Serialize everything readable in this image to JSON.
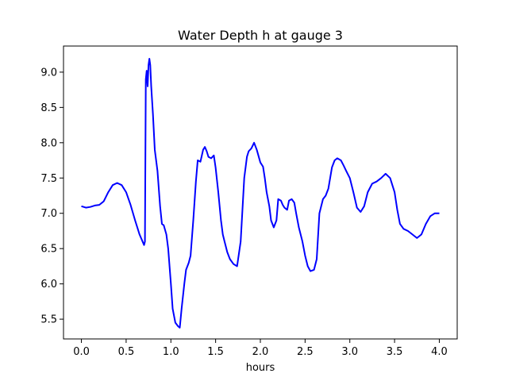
{
  "chart_data": {
    "type": "line",
    "title": "Water Depth h at gauge 3",
    "xlabel": "hours",
    "ylabel": "",
    "xlim": [
      -0.2,
      4.2
    ],
    "ylim": [
      5.22,
      9.37
    ],
    "xticks": [
      0.0,
      0.5,
      1.0,
      1.5,
      2.0,
      2.5,
      3.0,
      3.5,
      4.0
    ],
    "xtick_labels": [
      "0.0",
      "0.5",
      "1.0",
      "1.5",
      "2.0",
      "2.5",
      "3.0",
      "3.5",
      "4.0"
    ],
    "yticks": [
      5.5,
      6.0,
      6.5,
      7.0,
      7.5,
      8.0,
      8.5,
      9.0
    ],
    "ytick_labels": [
      "5.5",
      "6.0",
      "6.5",
      "7.0",
      "7.5",
      "8.0",
      "8.5",
      "9.0"
    ],
    "grid": false,
    "series": [
      {
        "color": "#0000ff",
        "x": [
          0.0,
          0.05,
          0.1,
          0.15,
          0.2,
          0.25,
          0.3,
          0.35,
          0.4,
          0.45,
          0.5,
          0.55,
          0.6,
          0.65,
          0.7,
          0.71,
          0.72,
          0.73,
          0.74,
          0.75,
          0.76,
          0.77,
          0.78,
          0.8,
          0.82,
          0.85,
          0.88,
          0.9,
          0.92,
          0.95,
          0.97,
          1.0,
          1.02,
          1.05,
          1.08,
          1.1,
          1.12,
          1.15,
          1.17,
          1.2,
          1.22,
          1.25,
          1.28,
          1.3,
          1.33,
          1.36,
          1.38,
          1.4,
          1.42,
          1.45,
          1.48,
          1.5,
          1.53,
          1.56,
          1.58,
          1.6,
          1.63,
          1.66,
          1.7,
          1.74,
          1.78,
          1.82,
          1.85,
          1.87,
          1.9,
          1.93,
          1.96,
          2.0,
          2.03,
          2.05,
          2.07,
          2.1,
          2.12,
          2.15,
          2.18,
          2.2,
          2.23,
          2.25,
          2.27,
          2.3,
          2.32,
          2.35,
          2.38,
          2.4,
          2.43,
          2.47,
          2.5,
          2.53,
          2.56,
          2.6,
          2.63,
          2.66,
          2.7,
          2.73,
          2.76,
          2.8,
          2.83,
          2.86,
          2.9,
          2.93,
          2.96,
          3.0,
          3.04,
          3.08,
          3.12,
          3.16,
          3.2,
          3.25,
          3.3,
          3.35,
          3.4,
          3.45,
          3.5,
          3.53,
          3.56,
          3.6,
          3.65,
          3.7,
          3.75,
          3.8,
          3.85,
          3.9,
          3.95,
          4.0
        ],
        "y": [
          7.1,
          7.08,
          7.09,
          7.11,
          7.12,
          7.17,
          7.3,
          7.4,
          7.43,
          7.4,
          7.3,
          7.12,
          6.9,
          6.7,
          6.55,
          6.6,
          8.9,
          9.02,
          8.8,
          9.1,
          9.19,
          9.1,
          8.8,
          8.4,
          7.9,
          7.6,
          7.1,
          6.85,
          6.83,
          6.7,
          6.5,
          6.0,
          5.65,
          5.45,
          5.4,
          5.38,
          5.65,
          6.0,
          6.2,
          6.3,
          6.4,
          6.9,
          7.45,
          7.75,
          7.73,
          7.9,
          7.94,
          7.88,
          7.8,
          7.78,
          7.82,
          7.65,
          7.3,
          6.9,
          6.7,
          6.6,
          6.45,
          6.35,
          6.28,
          6.25,
          6.6,
          7.5,
          7.8,
          7.88,
          7.92,
          8.0,
          7.9,
          7.72,
          7.66,
          7.5,
          7.3,
          7.1,
          6.9,
          6.8,
          6.9,
          7.2,
          7.18,
          7.12,
          7.08,
          7.05,
          7.18,
          7.2,
          7.15,
          7.0,
          6.8,
          6.6,
          6.4,
          6.25,
          6.18,
          6.2,
          6.35,
          7.0,
          7.2,
          7.25,
          7.35,
          7.65,
          7.75,
          7.78,
          7.75,
          7.68,
          7.6,
          7.5,
          7.3,
          7.08,
          7.02,
          7.1,
          7.3,
          7.42,
          7.45,
          7.5,
          7.56,
          7.5,
          7.3,
          7.05,
          6.85,
          6.78,
          6.75,
          6.7,
          6.65,
          6.7,
          6.85,
          6.96,
          7.0,
          7.0
        ]
      }
    ]
  }
}
